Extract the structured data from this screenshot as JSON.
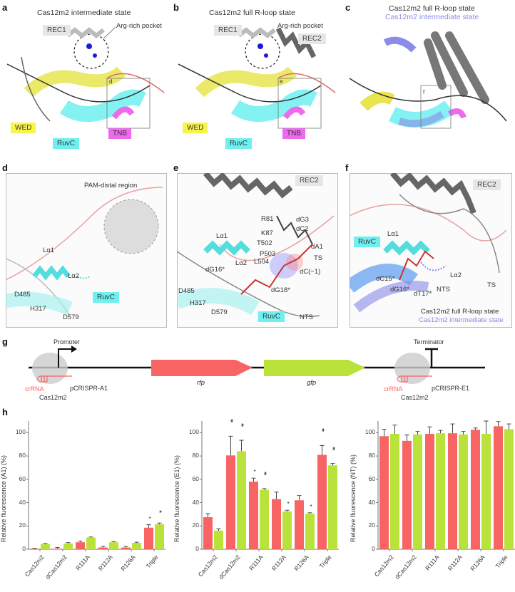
{
  "panels": {
    "a": {
      "letter": "a",
      "title": "Cas12m2 intermediate state",
      "labels": {
        "rec1": "REC1",
        "arg_pocket": "Arg-rich pocket",
        "wed": "WED",
        "ruvc": "RuvC",
        "tnb": "TNB",
        "inset": "d"
      }
    },
    "b": {
      "letter": "b",
      "title": "Cas12m2 full R-loop state",
      "labels": {
        "rec1": "REC1",
        "rec2": "REC2",
        "arg_pocket": "Arg-rich pocket",
        "wed": "WED",
        "ruvc": "RuvC",
        "tnb": "TNB",
        "inset": "e"
      }
    },
    "c": {
      "letter": "c",
      "title": "Cas12m2 full R-loop state",
      "subtitle": "Cas12m2 intermediate state",
      "labels": {
        "inset": "f"
      }
    },
    "d": {
      "letter": "d",
      "labels": {
        "pam_distal": "PAM-distal region",
        "la1": "Lα1",
        "la2": "Lα2",
        "d485": "D485",
        "h317": "H317",
        "d579": "D579",
        "ruvc": "RuvC"
      }
    },
    "e": {
      "letter": "e",
      "labels": {
        "rec2": "REC2",
        "r81": "R81",
        "dg3": "dG3",
        "dc2": "dC2",
        "k87": "K87",
        "t502": "T502",
        "da1": "dA1",
        "p503": "P503",
        "l504": "L504",
        "ts": "TS",
        "la1": "Lα1",
        "la2": "Lα2",
        "dg16": "dG16*",
        "dc_1": "dC(−1)",
        "d485": "D485",
        "dg18": "dG18*",
        "h317": "H317",
        "d579": "D579",
        "ruvc": "RuvC",
        "nts": "NTS"
      }
    },
    "f": {
      "letter": "f",
      "labels": {
        "rec2": "REC2",
        "ruvc": "RuvC",
        "la1": "Lα1",
        "la2": "Lα2",
        "dc15": "dC15*",
        "dg16": "dG16*",
        "dt17": "dT17*",
        "nts": "NTS",
        "ts": "TS",
        "legend1": "Cas12m2 full R-loop state",
        "legend2": "Cas12m2 intermediate state"
      }
    },
    "g": {
      "letter": "g",
      "labels": {
        "promoter": "Promoter",
        "terminator": "Terminator",
        "rfp": "rfp",
        "gfp": "gfp",
        "crrna_left": "crRNA",
        "crrna_right": "crRNA",
        "cas_left": "Cas12m2",
        "cas_right": "Cas12m2",
        "pcrispr_a1": "pCRISPR-A1",
        "pcrispr_e1": "pCRISPR-E1"
      }
    },
    "h": {
      "letter": "h"
    }
  },
  "colors": {
    "rfp": "#f86464",
    "gfp": "#b9e23a",
    "ruvc": "#6ff0f0",
    "wed": "#f7f54a",
    "tnb": "#ec6aec",
    "rec": "#8a8a8a",
    "intermediate": "#8b8be8"
  },
  "chart_data": [
    {
      "type": "bar",
      "title": "",
      "xlabel": "",
      "ylabel": "Relative fluorescence (A1) (%)",
      "ylim": [
        0,
        110
      ],
      "yticks": [
        0,
        20,
        40,
        60,
        80,
        100
      ],
      "categories": [
        "Cas12m2",
        "dCas12m2",
        "R111A",
        "R112A",
        "R126A",
        "Triple"
      ],
      "series": [
        {
          "name": "RFP",
          "color": "#f86464",
          "values": [
            0.5,
            0.5,
            6,
            1.5,
            1.5,
            18.5
          ],
          "errors": [
            0.3,
            1,
            1,
            1,
            1,
            2.5
          ],
          "stars": [
            "",
            "",
            "",
            "",
            "",
            "*"
          ]
        },
        {
          "name": "GFP",
          "color": "#b9e23a",
          "values": [
            4.5,
            5,
            10,
            6,
            5.5,
            21.5
          ],
          "errors": [
            0.5,
            0.7,
            0.5,
            0.5,
            0.6,
            1
          ],
          "stars": [
            "",
            "",
            "",
            "",
            "",
            "**"
          ]
        }
      ],
      "grid": false,
      "legend": "none"
    },
    {
      "type": "bar",
      "title": "",
      "xlabel": "",
      "ylabel": "Relative fluorescence (E1) (%)",
      "ylim": [
        0,
        110
      ],
      "yticks": [
        0,
        20,
        40,
        60,
        80,
        100
      ],
      "categories": [
        "Cas12m2",
        "dCas12m2",
        "R111A",
        "R112A",
        "R126A",
        "Triple"
      ],
      "series": [
        {
          "name": "RFP",
          "color": "#f86464",
          "values": [
            27.5,
            80.5,
            58,
            43,
            42,
            81
          ],
          "errors": [
            3,
            16.5,
            3,
            6,
            4,
            8
          ],
          "stars": [
            "",
            "***",
            "*",
            "",
            "",
            "***"
          ]
        },
        {
          "name": "GFP",
          "color": "#b9e23a",
          "values": [
            16,
            84,
            51,
            32.5,
            30.5,
            72
          ],
          "errors": [
            1.5,
            9.5,
            1,
            1,
            0.8,
            1.5
          ],
          "stars": [
            "",
            "***",
            "***",
            "*",
            "*",
            "***"
          ]
        }
      ],
      "grid": false,
      "legend": "none"
    },
    {
      "type": "bar",
      "title": "",
      "xlabel": "",
      "ylabel": "Relative fluorescence (NT) (%)",
      "ylim": [
        0,
        110
      ],
      "yticks": [
        0,
        20,
        40,
        60,
        80,
        100
      ],
      "categories": [
        "Cas12m2",
        "dCas12m2",
        "R111A",
        "R112A",
        "R126A",
        "Triple"
      ],
      "series": [
        {
          "name": "RFP",
          "color": "#f86464",
          "values": [
            97,
            93,
            99,
            99.5,
            102.5,
            105.5
          ],
          "errors": [
            6,
            5,
            6,
            8,
            1.5,
            4
          ],
          "stars": [
            "",
            "",
            "",
            "",
            "",
            ""
          ]
        },
        {
          "name": "GFP",
          "color": "#b9e23a",
          "values": [
            99,
            98.5,
            99.5,
            98.5,
            99,
            103
          ],
          "errors": [
            7.5,
            2.5,
            2.5,
            2.5,
            11,
            4.5
          ],
          "stars": [
            "",
            "",
            "",
            "",
            "",
            ""
          ]
        }
      ],
      "grid": false,
      "legend": "none"
    }
  ]
}
